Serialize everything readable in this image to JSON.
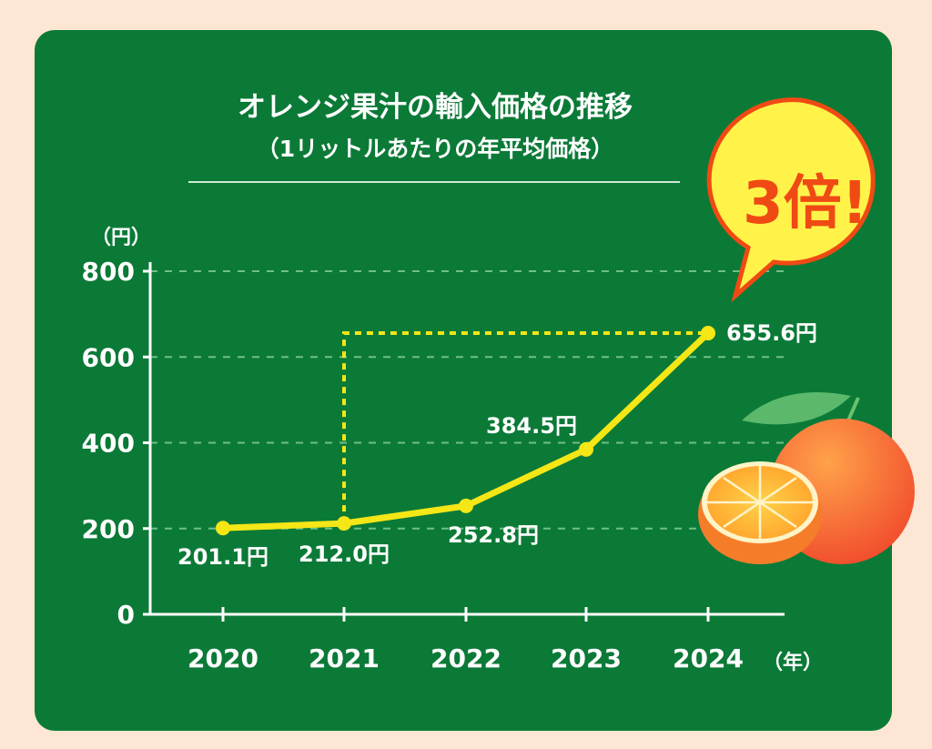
{
  "colors": {
    "background": "#fde7d4",
    "panel": "#0b7a37",
    "line": "#f5e616",
    "text": "#ffffff",
    "grid": "#6fbf8a",
    "badge_fill": "#fff34a",
    "badge_text": "#f04a14"
  },
  "badge": {
    "text": "3倍!"
  },
  "illustration": {
    "icon": "orange-fruit-icon"
  },
  "chart_data": {
    "type": "line",
    "title": "オレンジ果汁の輸入価格の推移",
    "subtitle": "（1リットルあたりの年平均価格）",
    "ylabel": "（円）",
    "xlabel": "（年）",
    "categories": [
      "2020",
      "2021",
      "2022",
      "2023",
      "2024"
    ],
    "values": [
      201.1,
      212.0,
      252.8,
      384.5,
      655.6
    ],
    "data_labels": [
      "201.1円",
      "212.0円",
      "252.8円",
      "384.5円",
      "655.6円"
    ],
    "yticks": [
      "0",
      "200",
      "400",
      "600",
      "800"
    ],
    "ylim": [
      0,
      800
    ],
    "grid": true,
    "comparison": {
      "from": "2021",
      "to": "2024",
      "style": "dashed"
    }
  }
}
